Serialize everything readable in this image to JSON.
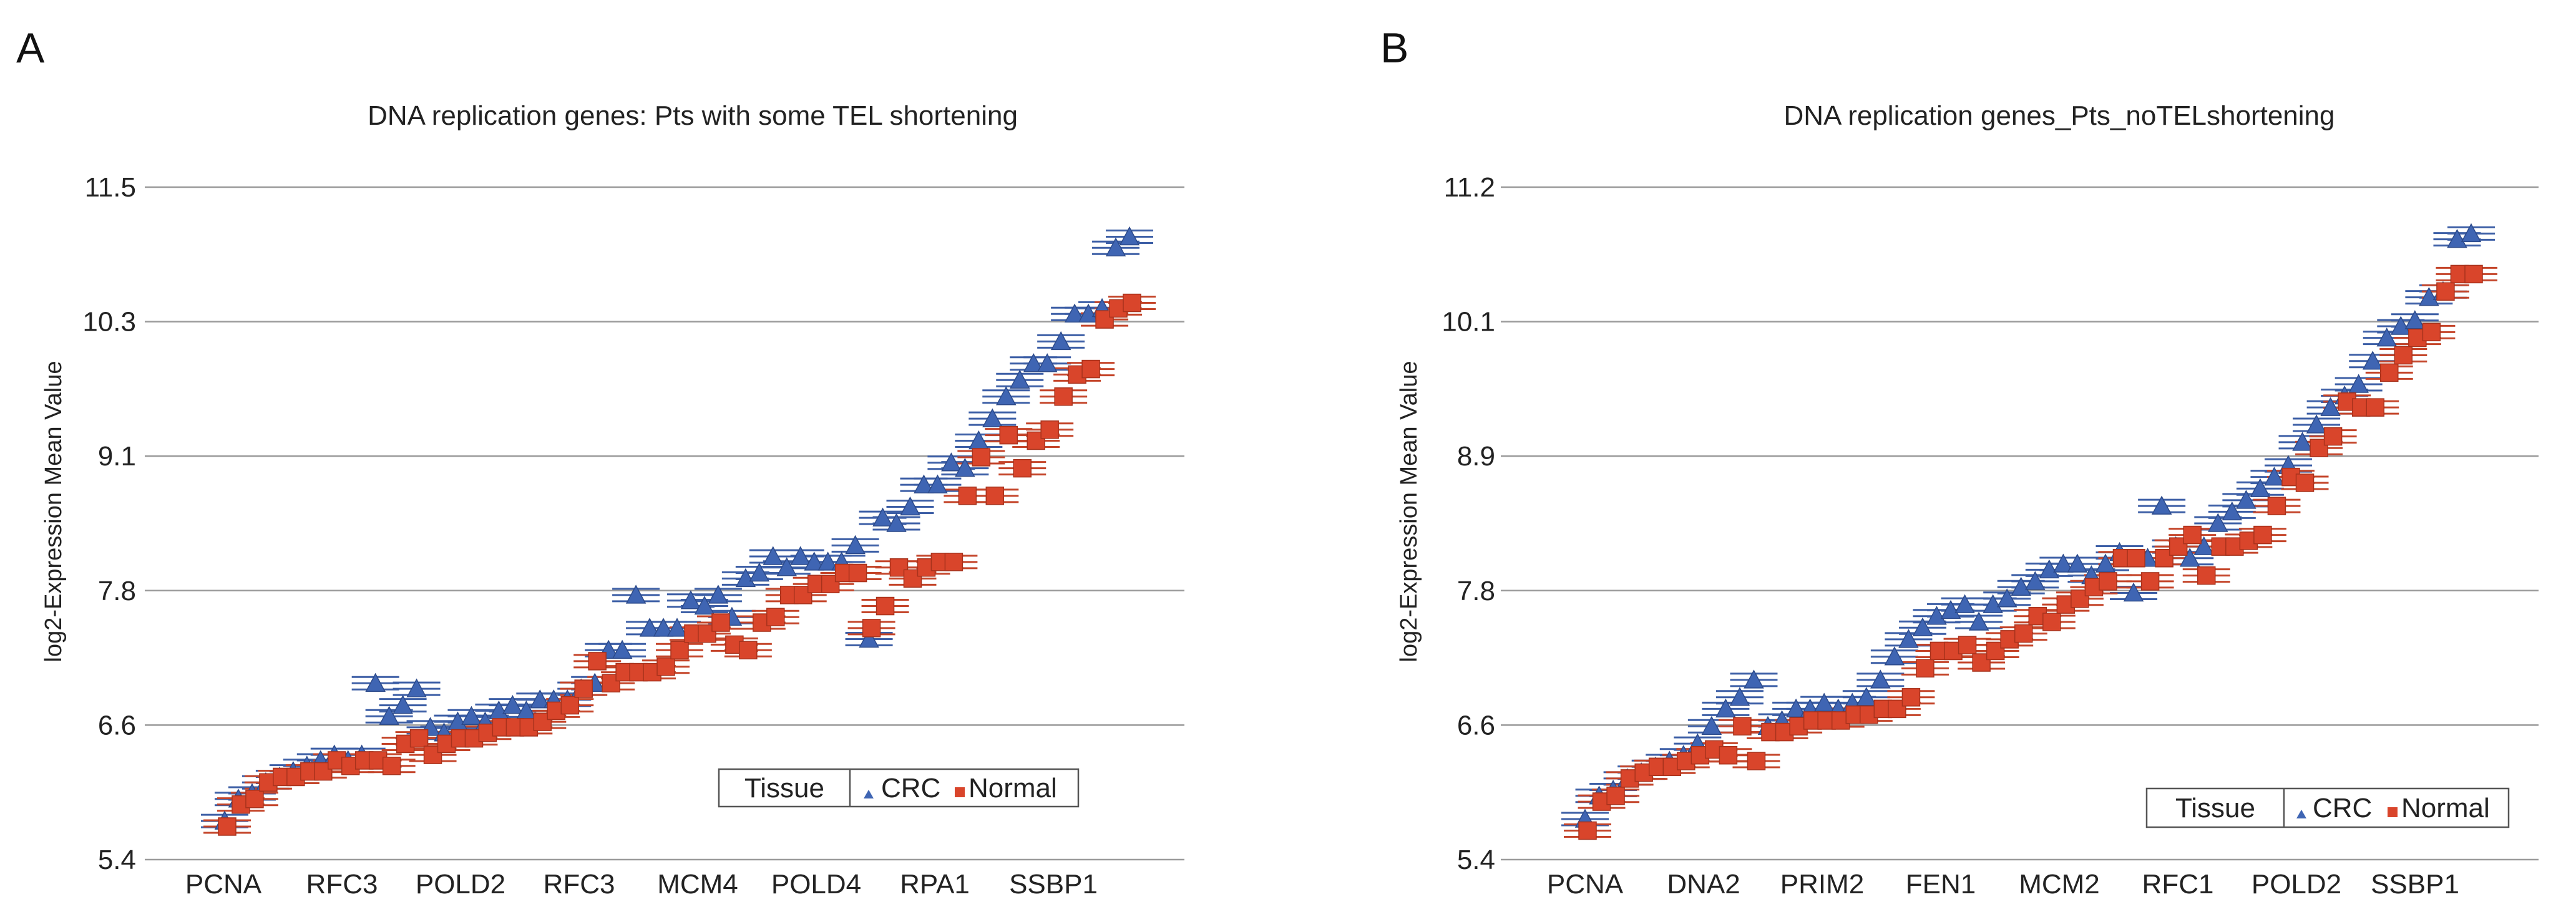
{
  "chart_data": [
    {
      "type": "scatter",
      "panel_label": "A",
      "title": "DNA replication genes: Pts with some TEL shortening",
      "xlabel": "",
      "ylabel": "log2-Expression Mean Value",
      "ylim": [
        5.4,
        11.5
      ],
      "yticks": [
        "5.4",
        "6.6",
        "7.8",
        "9.1",
        "10.3",
        "11.5"
      ],
      "x_tick_labels": [
        "PCNA",
        "RFC3",
        "POLD2",
        "RFC3",
        "MCM4",
        "POLD4",
        "RPA1",
        "SSBP1"
      ],
      "grid": true,
      "legend": {
        "title": "Tissue",
        "placement": "bottom-right",
        "entries": [
          {
            "name": "CRC",
            "marker": "triangle",
            "color": "#3f65b3"
          },
          {
            "name": "Normal",
            "marker": "square",
            "color": "#d9452b"
          }
        ]
      },
      "series": [
        {
          "name": "CRC",
          "marker": "triangle",
          "color": "#3f65b3",
          "values": [
            5.75,
            5.95,
            6.0,
            6.1,
            6.15,
            6.2,
            6.25,
            6.3,
            6.35,
            6.3,
            6.35,
            7.0,
            6.7,
            6.8,
            6.95,
            6.6,
            6.55,
            6.65,
            6.7,
            6.65,
            6.75,
            6.8,
            6.75,
            6.85,
            6.85,
            6.85,
            6.95,
            7.0,
            7.3,
            7.3,
            7.8,
            7.5,
            7.5,
            7.5,
            7.75,
            7.7,
            7.8,
            7.6,
            7.95,
            8.0,
            8.15,
            8.05,
            8.15,
            8.1,
            8.1,
            8.1,
            8.25,
            7.4,
            8.5,
            8.45,
            8.6,
            8.8,
            8.8,
            9.0,
            8.95,
            9.2,
            9.4,
            9.6,
            9.75,
            9.9,
            9.9,
            10.1,
            10.35,
            10.35,
            10.4,
            10.95,
            11.05
          ]
        },
        {
          "name": "Normal",
          "marker": "square",
          "color": "#d9452b",
          "values": [
            5.7,
            5.9,
            5.95,
            6.1,
            6.15,
            6.15,
            6.2,
            6.2,
            6.3,
            6.25,
            6.3,
            6.3,
            6.25,
            6.45,
            6.5,
            6.35,
            6.45,
            6.5,
            6.5,
            6.55,
            6.6,
            6.6,
            6.6,
            6.65,
            6.75,
            6.8,
            6.95,
            7.2,
            7.0,
            7.1,
            7.1,
            7.1,
            7.15,
            7.3,
            7.45,
            7.45,
            7.55,
            7.35,
            7.3,
            7.55,
            7.6,
            7.8,
            7.8,
            7.9,
            7.9,
            8.0,
            8.0,
            7.5,
            7.7,
            8.05,
            7.95,
            8.05,
            8.1,
            8.1,
            8.7,
            9.05,
            8.7,
            9.25,
            8.95,
            9.2,
            9.3,
            9.6,
            9.8,
            9.85,
            10.3,
            10.4,
            10.45
          ]
        }
      ]
    },
    {
      "type": "scatter",
      "panel_label": "B",
      "title": "DNA replication genes_Pts_noTELshortening",
      "xlabel": "",
      "ylabel": "log2-Expression Mean Value",
      "ylim": [
        5.4,
        11.2
      ],
      "yticks": [
        "5.4",
        "6.6",
        "7.8",
        "8.9",
        "10.1",
        "11.2"
      ],
      "x_tick_labels": [
        "PCNA",
        "DNA2",
        "PRIM2",
        "FEN1",
        "MCM2",
        "RFC1",
        "POLD2",
        "SSBP1"
      ],
      "grid": true,
      "legend": {
        "title": "Tissue",
        "placement": "bottom-right",
        "entries": [
          {
            "name": "CRC",
            "marker": "triangle",
            "color": "#3f65b3"
          },
          {
            "name": "Normal",
            "marker": "square",
            "color": "#d9452b"
          }
        ]
      },
      "series": [
        {
          "name": "CRC",
          "marker": "triangle",
          "color": "#3f65b3",
          "values": [
            5.75,
            5.95,
            6.0,
            6.1,
            6.15,
            6.2,
            6.25,
            6.3,
            6.4,
            6.55,
            6.7,
            6.8,
            6.95,
            6.55,
            6.6,
            6.7,
            6.7,
            6.75,
            6.7,
            6.75,
            6.8,
            6.95,
            7.15,
            7.3,
            7.4,
            7.5,
            7.55,
            7.6,
            7.45,
            7.6,
            7.65,
            7.75,
            7.8,
            7.9,
            7.95,
            7.95,
            7.85,
            7.95,
            8.05,
            7.7,
            8.0,
            8.45,
            8.1,
            8.0,
            8.1,
            8.3,
            8.4,
            8.5,
            8.6,
            8.7,
            8.8,
            9.0,
            9.15,
            9.3,
            9.4,
            9.5,
            9.7,
            9.9,
            10.0,
            10.05,
            10.25,
            10.3,
            10.75,
            10.8
          ]
        },
        {
          "name": "Normal",
          "marker": "square",
          "color": "#d9452b",
          "values": [
            5.65,
            5.9,
            5.95,
            6.1,
            6.15,
            6.2,
            6.2,
            6.25,
            6.3,
            6.35,
            6.3,
            6.55,
            6.25,
            6.5,
            6.5,
            6.55,
            6.6,
            6.6,
            6.6,
            6.65,
            6.65,
            6.7,
            6.7,
            6.8,
            7.05,
            7.2,
            7.2,
            7.25,
            7.1,
            7.2,
            7.3,
            7.35,
            7.5,
            7.45,
            7.6,
            7.65,
            7.75,
            7.8,
            8.0,
            8.0,
            7.8,
            8.0,
            8.1,
            8.2,
            7.85,
            8.1,
            8.1,
            8.15,
            8.2,
            8.45,
            8.7,
            8.65,
            8.95,
            9.05,
            9.35,
            9.3,
            9.3,
            9.6,
            9.75,
            9.9,
            9.95,
            10.3,
            10.45,
            10.45
          ]
        }
      ]
    }
  ]
}
